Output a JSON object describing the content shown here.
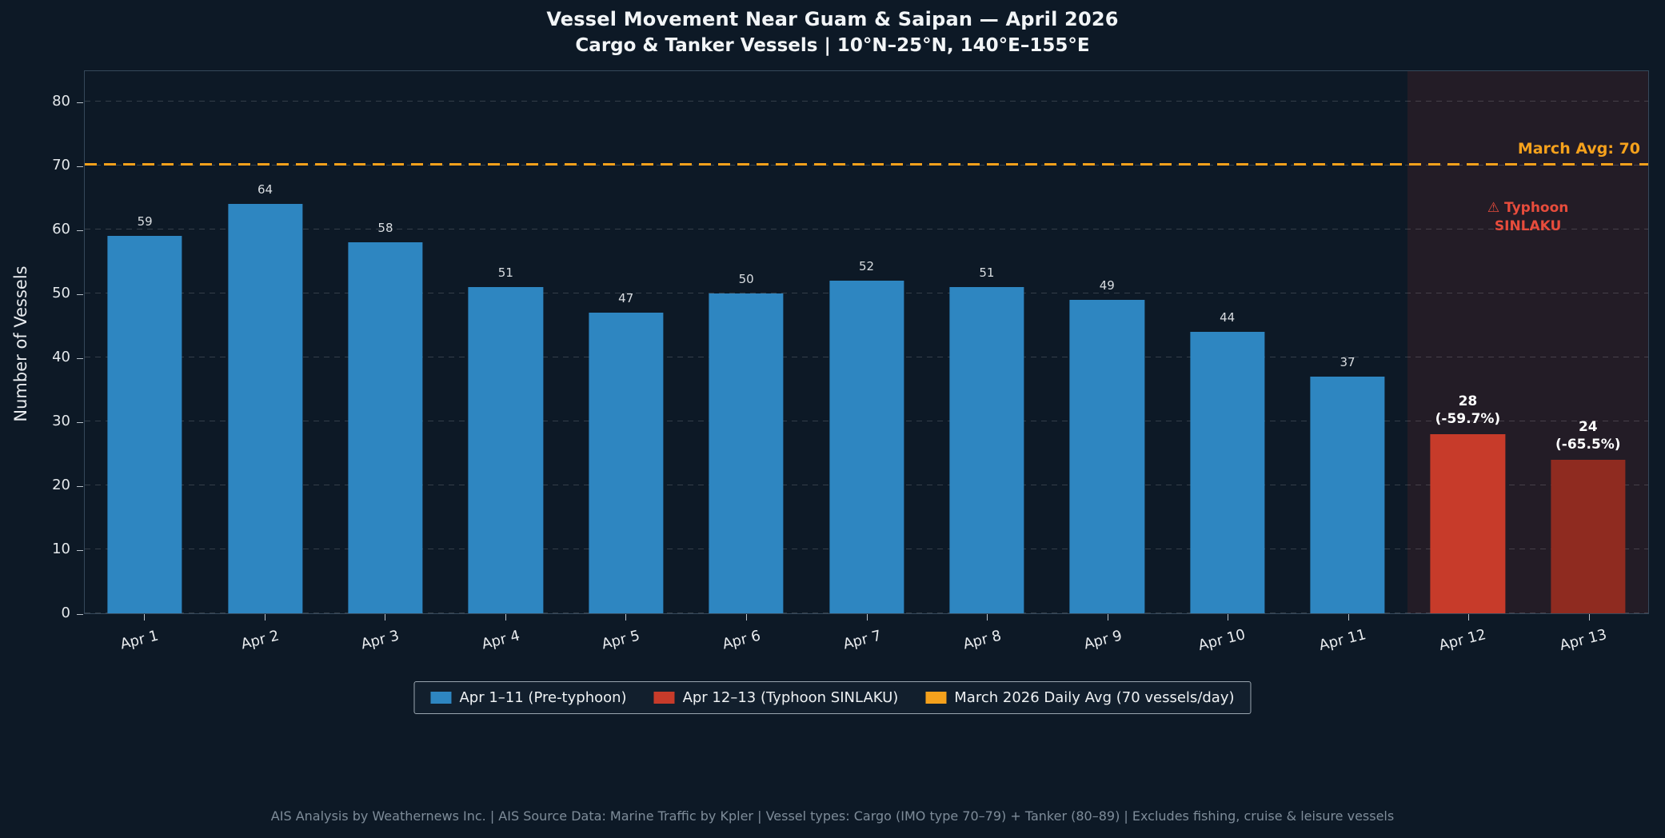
{
  "title": "Vessel Movement Near Guam & Saipan — April 2026",
  "subtitle": "Cargo & Tanker Vessels | 10°N–25°N, 140°E–155°E",
  "ylabel": "Number of Vessels",
  "avg_line": {
    "label": "March Avg: 70",
    "value": 70,
    "color": "#f5a11c"
  },
  "annotation": {
    "line1": "⚠ Typhoon",
    "line2": "SINLAKU"
  },
  "legend": [
    {
      "label": "Apr 1–11 (Pre-typhoon)",
      "color": "#2e86c1"
    },
    {
      "label": "Apr 12–13 (Typhoon SINLAKU)",
      "color": "#c73b2a"
    },
    {
      "label": "March 2026 Daily Avg (70 vessels/day)",
      "color": "#f5a11c"
    }
  ],
  "footer": "AIS Analysis by Weathernews Inc.  |  AIS Source Data: Marine Traffic by Kpler  |  Vessel types: Cargo (IMO type 70–79) + Tanker (80–89)  |  Excludes fishing, cruise & leisure vessels",
  "chart_data": {
    "type": "bar",
    "title": "Vessel Movement Near Guam & Saipan — April 2026",
    "subtitle": "Cargo & Tanker Vessels | 10°N–25°N, 140°E–155°E",
    "xlabel": "",
    "ylabel": "Number of Vessels",
    "categories": [
      "Apr 1",
      "Apr 2",
      "Apr 3",
      "Apr 4",
      "Apr 5",
      "Apr 6",
      "Apr 7",
      "Apr 8",
      "Apr 9",
      "Apr 10",
      "Apr 11",
      "Apr 12",
      "Apr 13"
    ],
    "values": [
      59,
      64,
      58,
      51,
      47,
      50,
      52,
      51,
      49,
      44,
      37,
      28,
      24
    ],
    "bar_colors": [
      "#2e86c1",
      "#2e86c1",
      "#2e86c1",
      "#2e86c1",
      "#2e86c1",
      "#2e86c1",
      "#2e86c1",
      "#2e86c1",
      "#2e86c1",
      "#2e86c1",
      "#2e86c1",
      "#c73b2a",
      "#8f2b20"
    ],
    "bar_label_lines": [
      [
        "59"
      ],
      [
        "64"
      ],
      [
        "58"
      ],
      [
        "51"
      ],
      [
        "47"
      ],
      [
        "50"
      ],
      [
        "52"
      ],
      [
        "51"
      ],
      [
        "49"
      ],
      [
        "44"
      ],
      [
        "37"
      ],
      [
        "28",
        "(-59.7%)"
      ],
      [
        "24",
        "(-65.5%)"
      ]
    ],
    "ylim": [
      0,
      85
    ],
    "yticks": [
      0,
      10,
      20,
      30,
      40,
      50,
      60,
      70,
      80
    ],
    "grid": true,
    "legend_position": "bottom",
    "reference_line": {
      "value": 70,
      "label": "March Avg: 70"
    },
    "highlight_region": {
      "start_category": "Apr 12",
      "end_category": "Apr 13",
      "start_index": 11,
      "end_index": 12,
      "label": "⚠ Typhoon SINLAKU"
    }
  }
}
